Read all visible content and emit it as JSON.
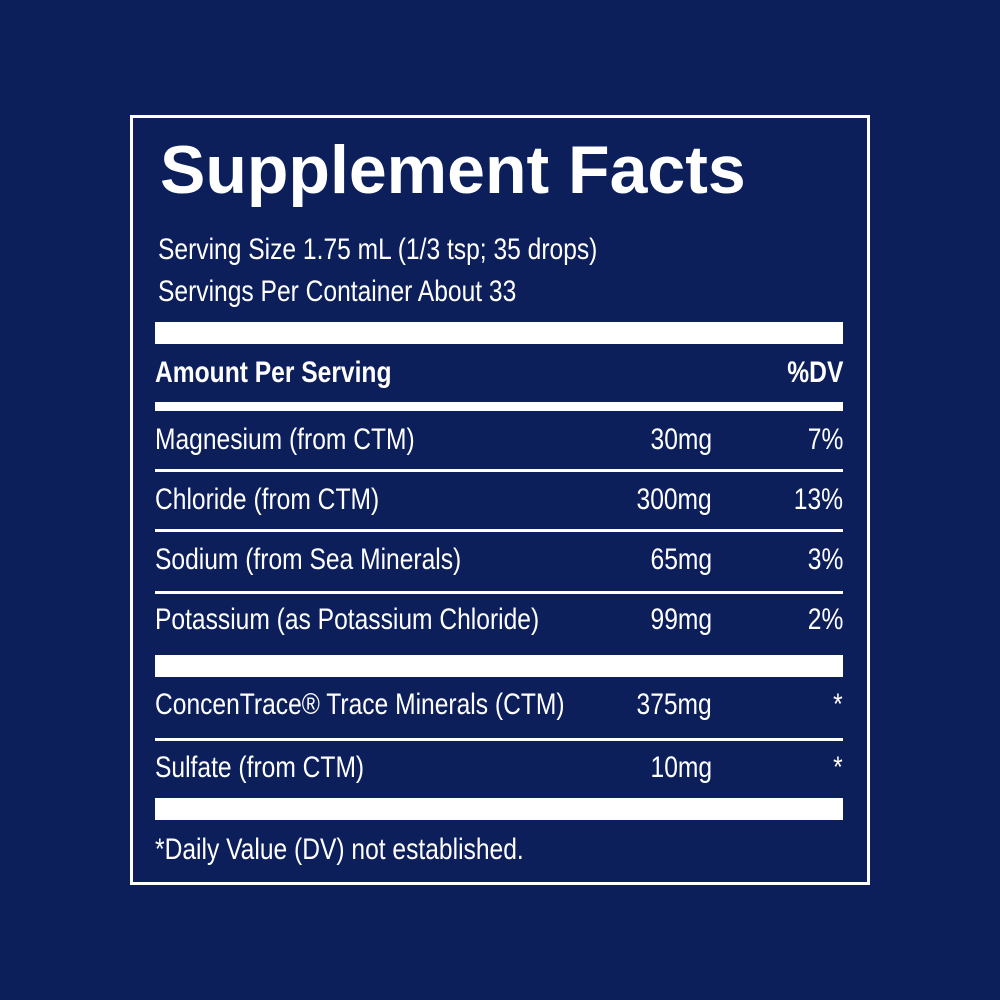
{
  "title": "Supplement Facts",
  "serving_size": "Serving Size 1.75 mL (1/3 tsp; 35 drops)",
  "servings_per_container": "Servings Per Container About 33",
  "header": {
    "amount": "Amount Per Serving",
    "dv": "%DV"
  },
  "rows": [
    [
      "Magnesium (from CTM)",
      "30mg",
      "7%"
    ],
    [
      "Chloride (from CTM)",
      "300mg",
      "13%"
    ],
    [
      "Sodium (from Sea Minerals)",
      "65mg",
      "3%"
    ],
    [
      "Potassium (as Potassium Chloride)",
      "99mg",
      "2%"
    ]
  ],
  "other_rows": [
    [
      "ConcenTrace® Trace Minerals (CTM)",
      "375mg",
      "*"
    ],
    [
      "Sulfate (from CTM)",
      "10mg",
      "*"
    ]
  ],
  "footnote": "*Daily Value (DV) not established."
}
